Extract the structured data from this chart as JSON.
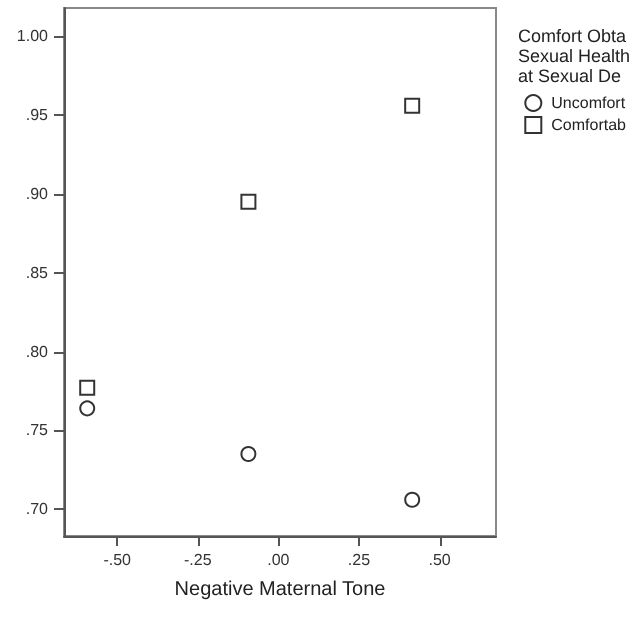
{
  "chart_data": {
    "type": "scatter",
    "xlabel": "Negative Maternal Tone",
    "legend_title": "Comfort Obta\nSexual Health\nat Sexual De",
    "legend": "right",
    "grid": false,
    "xlim": [
      -0.665,
      0.675
    ],
    "xticks": [
      {
        "value": -0.5,
        "label": "-.50"
      },
      {
        "value": -0.25,
        "label": "-.25"
      },
      {
        "value": 0,
        "label": ".00"
      },
      {
        "value": 0.25,
        "label": ".25"
      },
      {
        "value": 0.5,
        "label": ".50"
      }
    ],
    "ylim": [
      0.683,
      1.018
    ],
    "yticks": [
      {
        "value": 0.7,
        "label": ".70"
      },
      {
        "value": 0.75,
        "label": ".75"
      },
      {
        "value": 0.8,
        "label": ".80"
      },
      {
        "value": 0.85,
        "label": ".85"
      },
      {
        "value": 0.9,
        "label": ".90"
      },
      {
        "value": 0.95,
        "label": ".95"
      },
      {
        "value": 1,
        "label": "1.00"
      }
    ],
    "series": [
      {
        "name": "Uncomfort",
        "color": "#000000",
        "marker": "circle",
        "x": [
          -0.593,
          -0.093,
          0.415
        ],
        "values": [
          0.764,
          0.735,
          0.706
        ]
      },
      {
        "name": "Comfortab",
        "color": "#000000",
        "marker": "square",
        "x": [
          -0.593,
          -0.093,
          0.415
        ],
        "values": [
          0.777,
          0.895,
          0.956
        ]
      }
    ]
  }
}
